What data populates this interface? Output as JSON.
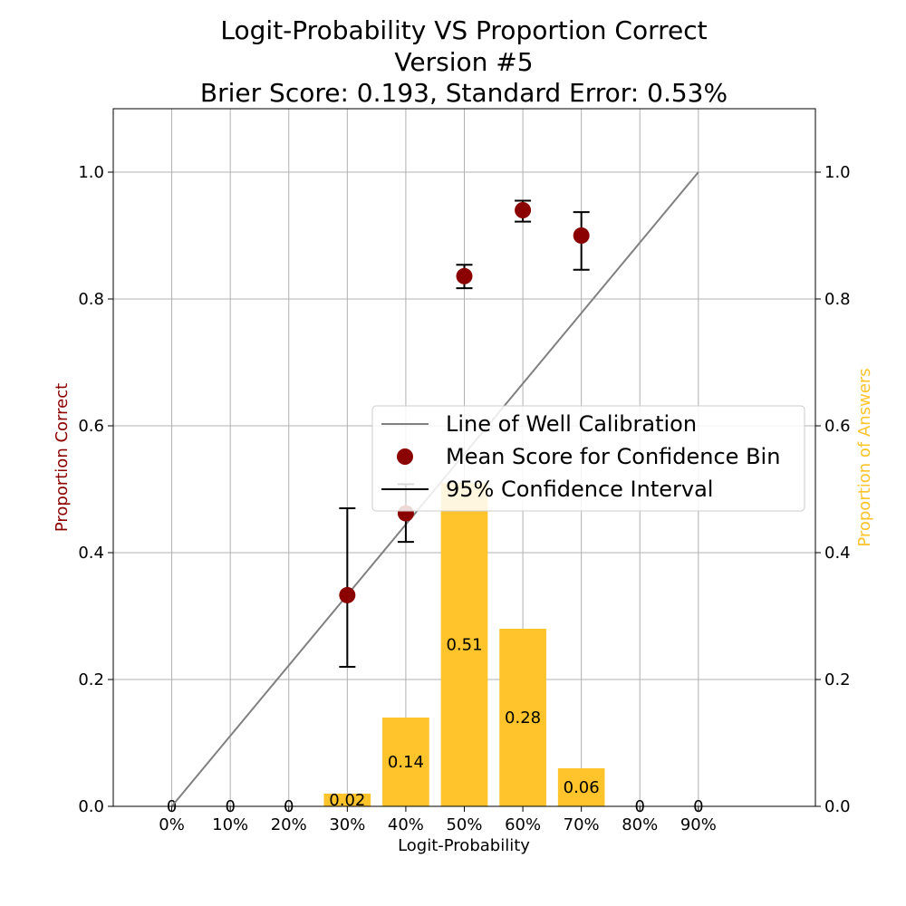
{
  "figure": {
    "title_line1": "Logit-Probability VS Proportion Correct",
    "title_line2": "Version #5",
    "title_line3": "Brier Score: 0.193, Standard Error: 0.53%"
  },
  "colors": {
    "points": "#8b0000",
    "bars": "#ffc32b",
    "calibration_line": "#808080",
    "errorbars": "#000000",
    "grid": "#b0b0b0",
    "left_axis_label": "#8b0000",
    "right_axis_label": "#ffc32b"
  },
  "chart_data": {
    "type": "bar",
    "xlabel": "Logit-Probability",
    "ylabel": "Proportion Correct",
    "ylabel_right": "Proportion of Answers",
    "xlim": [
      -1,
      11
    ],
    "ylim": [
      0,
      1.1
    ],
    "ylim_right": [
      0,
      1.1
    ],
    "grid": true,
    "categories": [
      "0%",
      "10%",
      "20%",
      "30%",
      "40%",
      "50%",
      "60%",
      "70%",
      "80%",
      "90%"
    ],
    "y_ticks": [
      0.0,
      0.2,
      0.4,
      0.6,
      0.8,
      1.0
    ],
    "y_tick_labels": [
      "0.0",
      "0.2",
      "0.4",
      "0.6",
      "0.8",
      "1.0"
    ],
    "series": [
      {
        "name": "Line of Well Calibration",
        "kind": "line",
        "x": [
          "0%",
          "90%"
        ],
        "y": [
          0.0,
          1.0
        ]
      },
      {
        "name": "Mean Score for Confidence Bin",
        "kind": "scatter",
        "x": [
          "30%",
          "40%",
          "50%",
          "60%",
          "70%"
        ],
        "y": [
          0.333,
          0.462,
          0.836,
          0.94,
          0.9
        ]
      },
      {
        "name": "95% Confidence Interval",
        "kind": "errorbar",
        "x": [
          "30%",
          "40%",
          "50%",
          "60%",
          "70%"
        ],
        "low": [
          0.22,
          0.417,
          0.817,
          0.922,
          0.846
        ],
        "high": [
          0.47,
          0.508,
          0.854,
          0.955,
          0.937
        ]
      },
      {
        "name": "Proportion of Answers",
        "kind": "bar",
        "axis": "right",
        "values": [
          0,
          0,
          0,
          0.02,
          0.14,
          0.51,
          0.28,
          0.06,
          0,
          0
        ],
        "labels": [
          "0",
          "0",
          "0",
          "0.02",
          "0.14",
          "0.51",
          "0.28",
          "0.06",
          "0",
          "0"
        ]
      }
    ],
    "legend": {
      "placement": "center-right",
      "entries": [
        "Line of Well Calibration",
        "Mean Score for Confidence Bin",
        "95% Confidence Interval"
      ]
    }
  }
}
